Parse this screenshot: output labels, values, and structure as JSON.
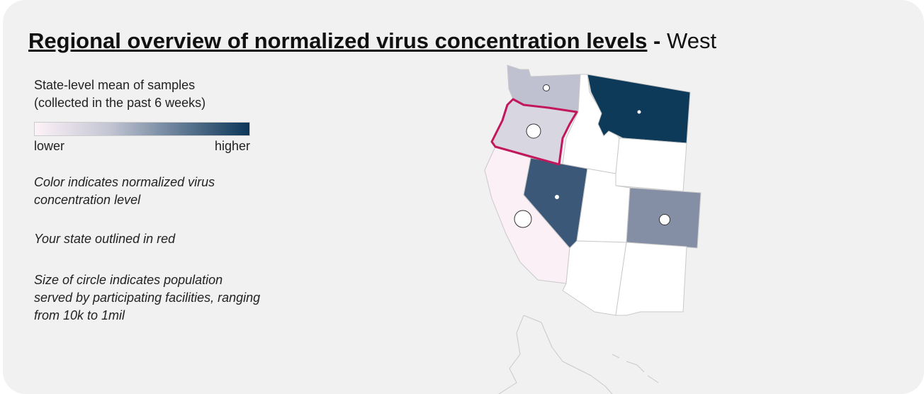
{
  "header": {
    "title": "Regional overview of normalized virus concentration levels",
    "separator": "-",
    "region": "West"
  },
  "legend": {
    "title_lines": [
      "State-level mean of samples",
      "(collected in the past 6 weeks)"
    ],
    "low_label": "lower",
    "high_label": "higher"
  },
  "notes": [
    "Color indicates normalized virus concentration level",
    "Your state outlined in red",
    "Size of circle indicates population served by participating facilities, ranging from 10k to 1mil"
  ]
}
